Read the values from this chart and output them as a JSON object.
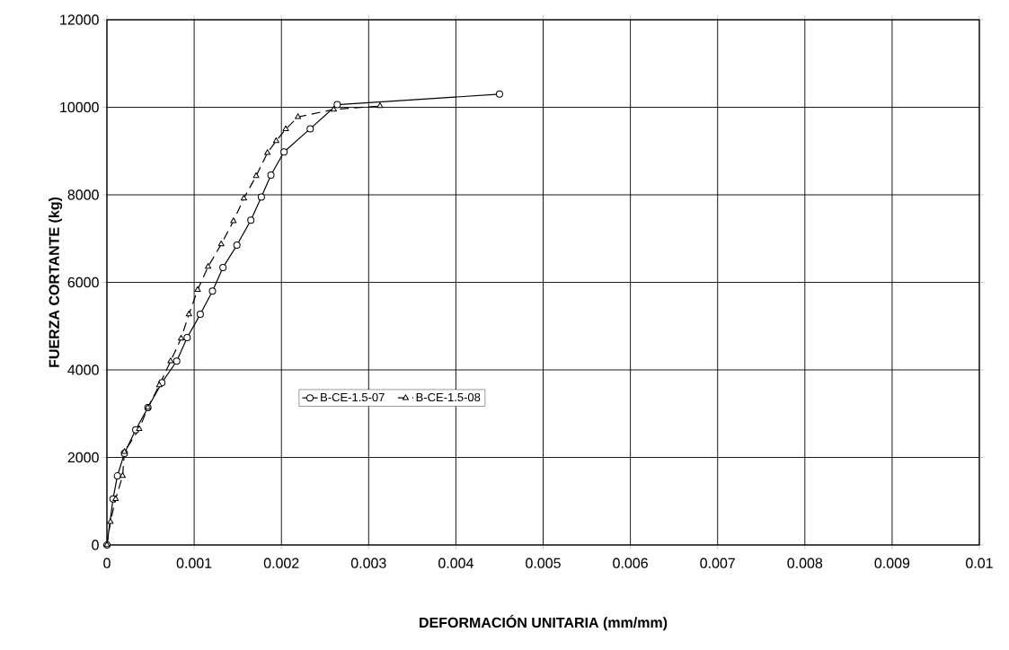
{
  "chart_data": {
    "type": "line",
    "xlabel": "DEFORMACIÓN UNITARIA (mm/mm)",
    "ylabel": "FUERZA CORTANTE (kg)",
    "xlim": [
      0,
      0.01
    ],
    "ylim": [
      0,
      12000
    ],
    "xticks": [
      0,
      0.001,
      0.002,
      0.003,
      0.004,
      0.005,
      0.006,
      0.007,
      0.008,
      0.009,
      0.01
    ],
    "yticks": [
      0,
      2000,
      4000,
      6000,
      8000,
      10000,
      12000
    ],
    "grid": true,
    "legend": "center left",
    "series": [
      {
        "name": "B-CE-1.5-07",
        "color": "#000000",
        "marker": "circle",
        "line_style": "solid",
        "x": [
          0,
          7e-05,
          0.00012,
          0.0002,
          0.00033,
          0.00047,
          0.00063,
          0.0008,
          0.00092,
          0.00107,
          0.00121,
          0.00133,
          0.00149,
          0.00165,
          0.00177,
          0.00188,
          0.00203,
          0.00233,
          0.00264,
          0.0045
        ],
        "values": [
          0,
          1050,
          1580,
          2090,
          2630,
          3140,
          3710,
          4200,
          4740,
          5270,
          5800,
          6340,
          6850,
          7420,
          7950,
          8450,
          8980,
          9510,
          10060,
          10300
        ]
      },
      {
        "name": "B-CE-1.5-08",
        "color": "#000000",
        "marker": "triangle",
        "line_style": "dashed",
        "x": [
          0,
          4e-05,
          0.0001,
          0.00018,
          0.0002,
          0.00037,
          0.00047,
          0.0006,
          0.00073,
          0.00085,
          0.00094,
          0.00104,
          0.00116,
          0.00131,
          0.00145,
          0.00157,
          0.00171,
          0.00184,
          0.00194,
          0.00205,
          0.00219,
          0.0026,
          0.00313
        ],
        "values": [
          0,
          530,
          1050,
          1580,
          2130,
          2650,
          3140,
          3650,
          4200,
          4720,
          5270,
          5830,
          6360,
          6870,
          7400,
          7920,
          8430,
          8960,
          9230,
          9500,
          9780,
          9950,
          10030
        ]
      }
    ]
  }
}
